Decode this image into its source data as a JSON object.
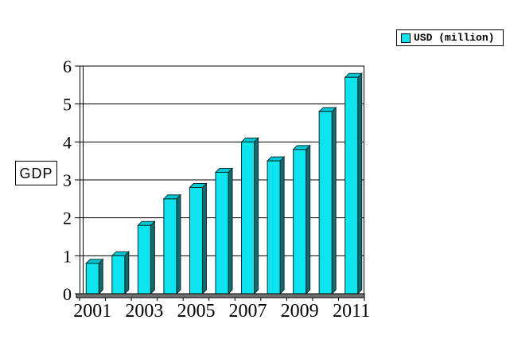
{
  "chart_data": {
    "type": "bar",
    "title": "",
    "categories": [
      "2001",
      "2002",
      "2003",
      "2004",
      "2005",
      "2006",
      "2007",
      "2008",
      "2009",
      "2010",
      "2011"
    ],
    "series": [
      {
        "name": "USD (million)",
        "values": [
          0.8,
          1.0,
          1.8,
          2.5,
          2.8,
          3.2,
          4.0,
          3.5,
          3.8,
          4.8,
          5.7
        ],
        "color": "#0de4ef"
      }
    ],
    "xlabel": "",
    "ylabel": "GDP",
    "ylim": [
      0,
      6
    ],
    "ytick_step": 1,
    "ytick_labels": [
      "0",
      "1",
      "2",
      "3",
      "4",
      "5",
      "6"
    ],
    "xtick_labels_shown": [
      "2001",
      "2003",
      "2005",
      "2007",
      "2009",
      "2011"
    ],
    "grid": true,
    "legend_position": "top-right",
    "style_3d": true
  },
  "legend": {
    "items": [
      {
        "label": "USD (million)",
        "swatch_color": "#0de4ef"
      }
    ]
  },
  "axes": {
    "y_title": "GDP"
  },
  "colors": {
    "bar_front": "#0de4ef",
    "bar_side": "#116b6e",
    "bar_top": "#00c9d6",
    "bar_outline": "#062a2a",
    "gridline": "#000000",
    "floor_fill": "#6f6f6f",
    "floor_outline": "#000000",
    "text": "#000000",
    "background": "#ffffff"
  }
}
